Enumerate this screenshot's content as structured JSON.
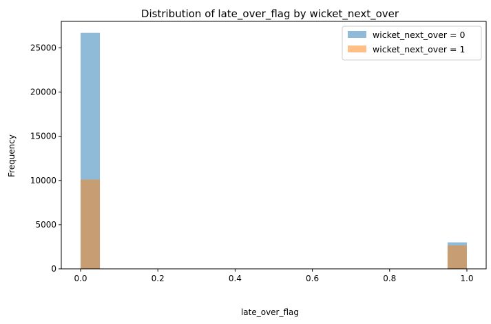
{
  "chart_data": {
    "type": "bar",
    "title": "Distribution of late_over_flag by wicket_next_over",
    "xlabel": "late_over_flag",
    "ylabel": "Frequency",
    "xlim": [
      -0.05,
      1.05
    ],
    "ylim": [
      0,
      28000
    ],
    "x_ticks": [
      0.0,
      0.2,
      0.4,
      0.6,
      0.8,
      1.0
    ],
    "x_tick_labels": [
      "0.0",
      "0.2",
      "0.4",
      "0.6",
      "0.8",
      "1.0"
    ],
    "y_ticks": [
      0,
      5000,
      10000,
      15000,
      20000,
      25000
    ],
    "y_tick_labels": [
      "0",
      "5000",
      "10000",
      "15000",
      "20000",
      "25000"
    ],
    "bin_width": 0.05,
    "series": [
      {
        "name": "wicket_next_over = 0",
        "color": "#1f77b4",
        "alpha": 0.5,
        "bins": [
          {
            "x": 0.0,
            "value": 26700
          },
          {
            "x": 0.95,
            "value": 3000
          }
        ]
      },
      {
        "name": "wicket_next_over = 1",
        "color": "#ff7f0e",
        "alpha": 0.5,
        "bins": [
          {
            "x": 0.0,
            "value": 10100
          },
          {
            "x": 0.95,
            "value": 2650
          }
        ]
      }
    ],
    "legend_position": "top-right",
    "grid": false
  }
}
